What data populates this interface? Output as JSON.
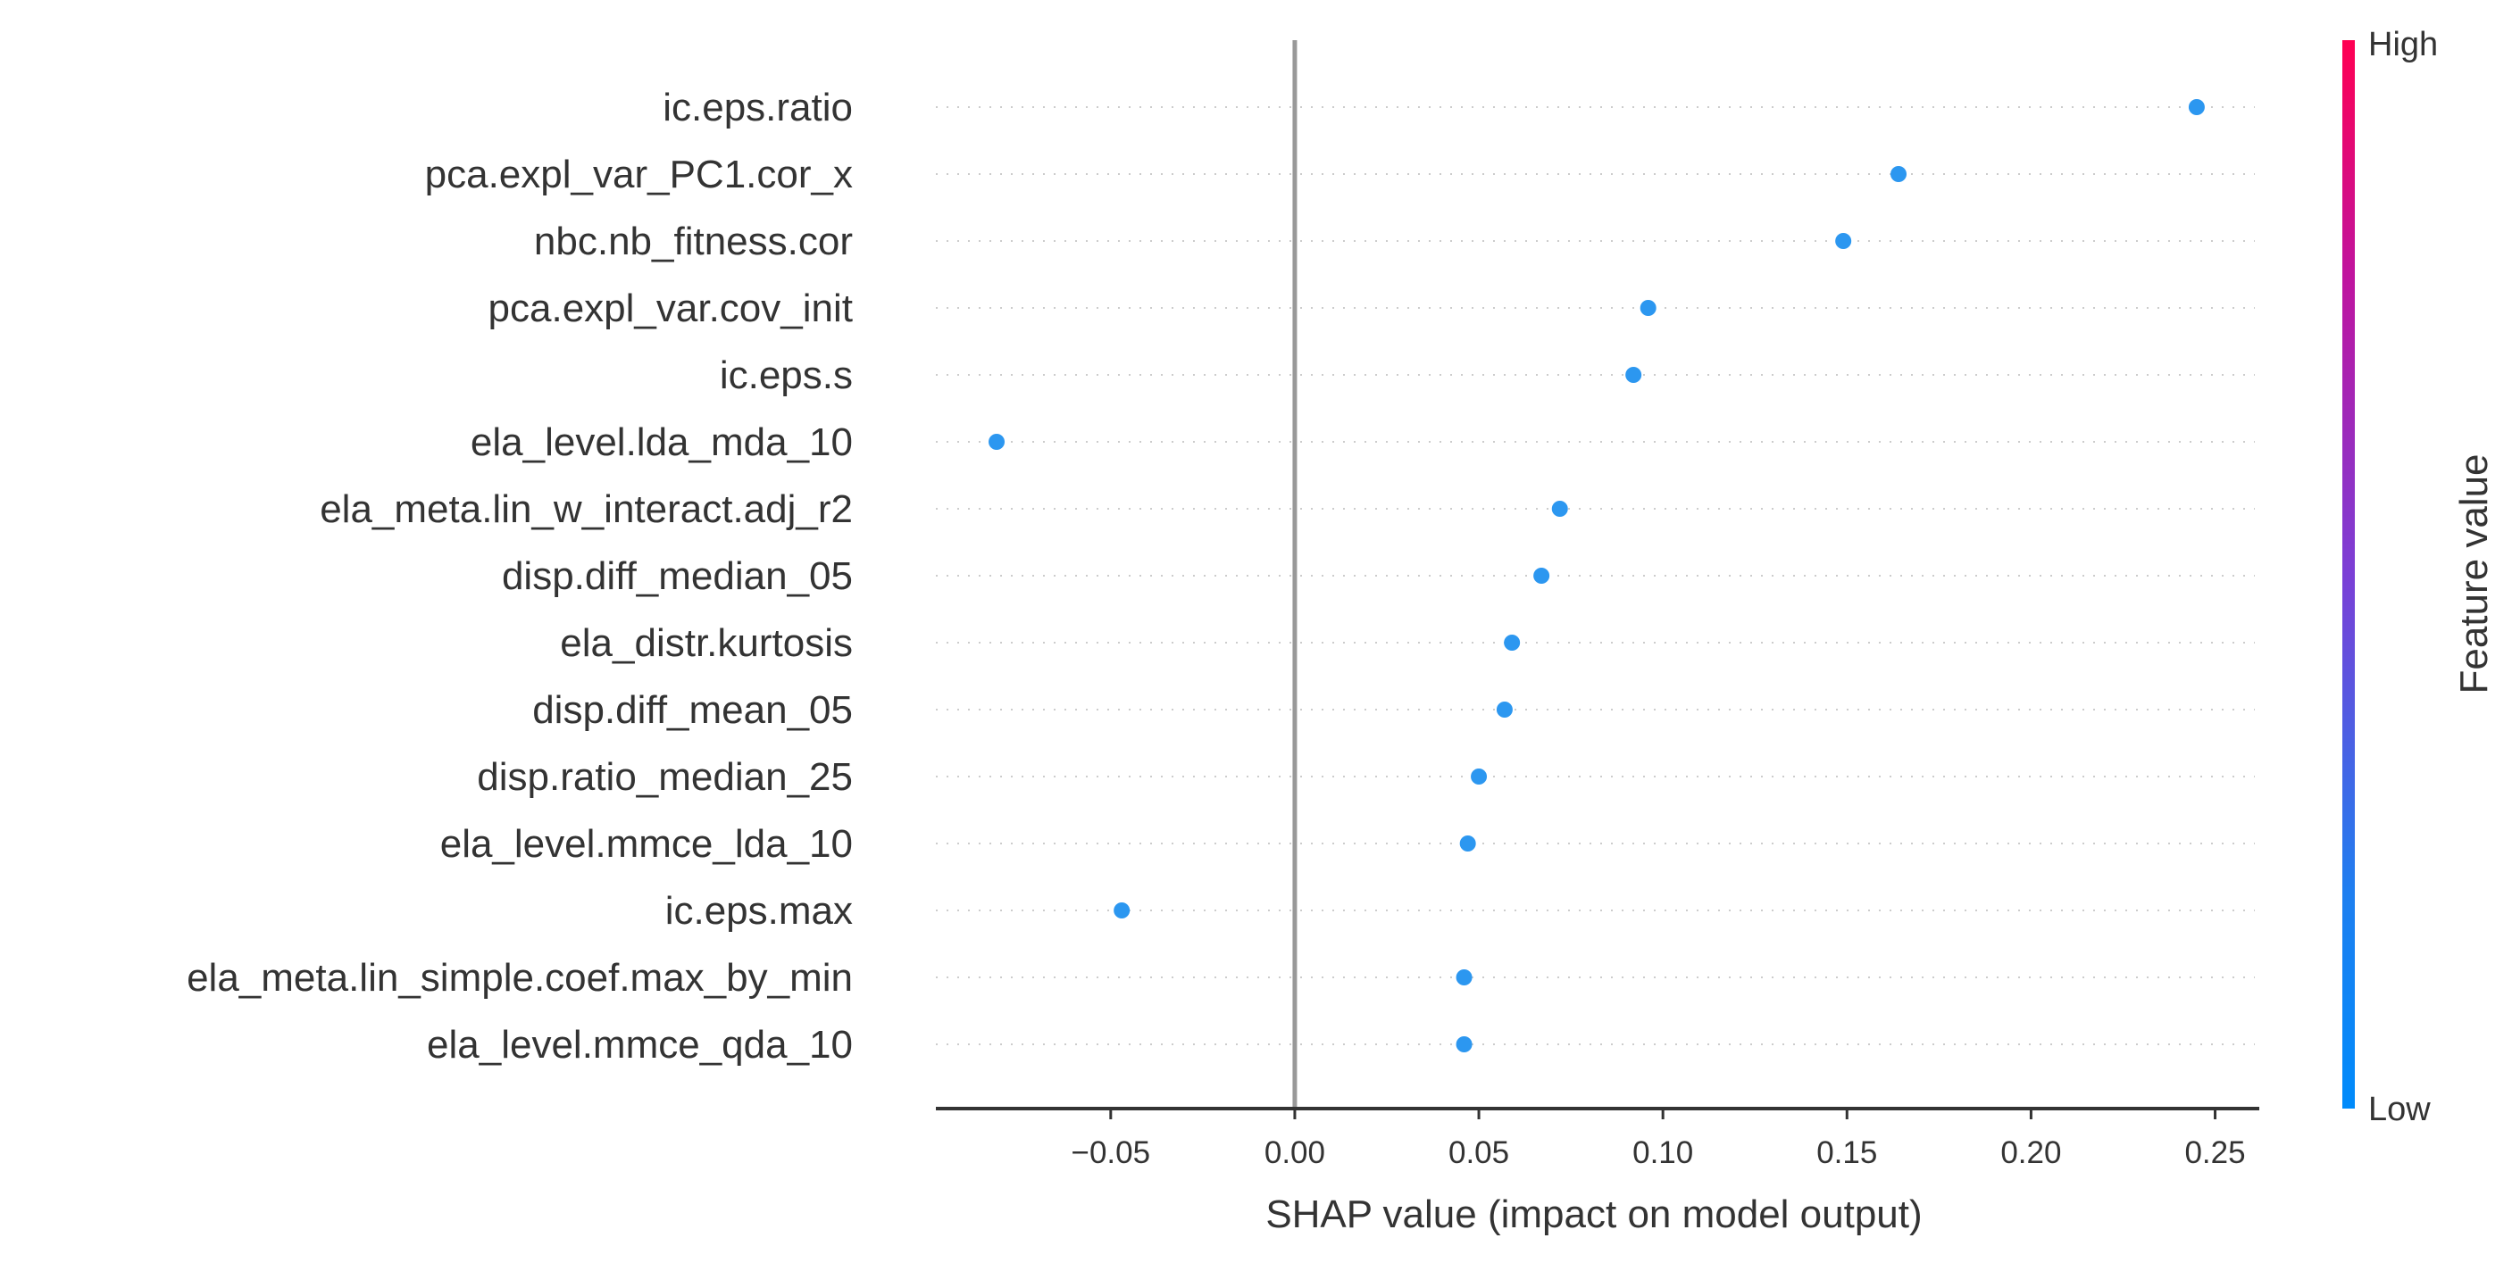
{
  "chart_data": {
    "type": "scatter",
    "title": "",
    "xlabel": "SHAP value (impact on model output)",
    "ylabel": "",
    "xlim": [
      -0.0975,
      0.262
    ],
    "xticks": [
      -0.05,
      0.0,
      0.05,
      0.1,
      0.15,
      0.2,
      0.25
    ],
    "xtick_labels": [
      "−0.05",
      "0.00",
      "0.05",
      "0.10",
      "0.15",
      "0.20",
      "0.25"
    ],
    "grid": "dotted horizontal per feature",
    "zero_line": 0.0,
    "features": [
      {
        "name": "ic.eps.ratio",
        "shap": 0.245,
        "color": "#2c97f0"
      },
      {
        "name": "pca.expl_var_PC1.cor_x",
        "shap": 0.164,
        "color": "#2c97f0"
      },
      {
        "name": "nbc.nb_fitness.cor",
        "shap": 0.149,
        "color": "#2c97f0"
      },
      {
        "name": "pca.expl_var.cov_init",
        "shap": 0.096,
        "color": "#2c97f0"
      },
      {
        "name": "ic.eps.s",
        "shap": 0.092,
        "color": "#2c97f0"
      },
      {
        "name": "ela_level.lda_mda_10",
        "shap": -0.081,
        "color": "#2c97f0"
      },
      {
        "name": "ela_meta.lin_w_interact.adj_r2",
        "shap": 0.072,
        "color": "#2c97f0"
      },
      {
        "name": "disp.diff_median_05",
        "shap": 0.067,
        "color": "#2c97f0"
      },
      {
        "name": "ela_distr.kurtosis",
        "shap": 0.059,
        "color": "#2c97f0"
      },
      {
        "name": "disp.diff_mean_05",
        "shap": 0.057,
        "color": "#2c97f0"
      },
      {
        "name": "disp.ratio_median_25",
        "shap": 0.05,
        "color": "#2c97f0"
      },
      {
        "name": "ela_level.mmce_lda_10",
        "shap": 0.047,
        "color": "#2c97f0"
      },
      {
        "name": "ic.eps.max",
        "shap": -0.047,
        "color": "#2c97f0"
      },
      {
        "name": "ela_meta.lin_simple.coef.max_by_min",
        "shap": 0.046,
        "color": "#2c97f0"
      },
      {
        "name": "ela_level.mmce_qda_10",
        "shap": 0.046,
        "color": "#2c97f0"
      }
    ],
    "colorbar": {
      "label": "Feature value",
      "high_label": "High",
      "low_label": "Low",
      "gradient": [
        "#ff0052",
        "#c0149e",
        "#7b3fd6",
        "#1e7ff0",
        "#008bfb"
      ]
    }
  }
}
